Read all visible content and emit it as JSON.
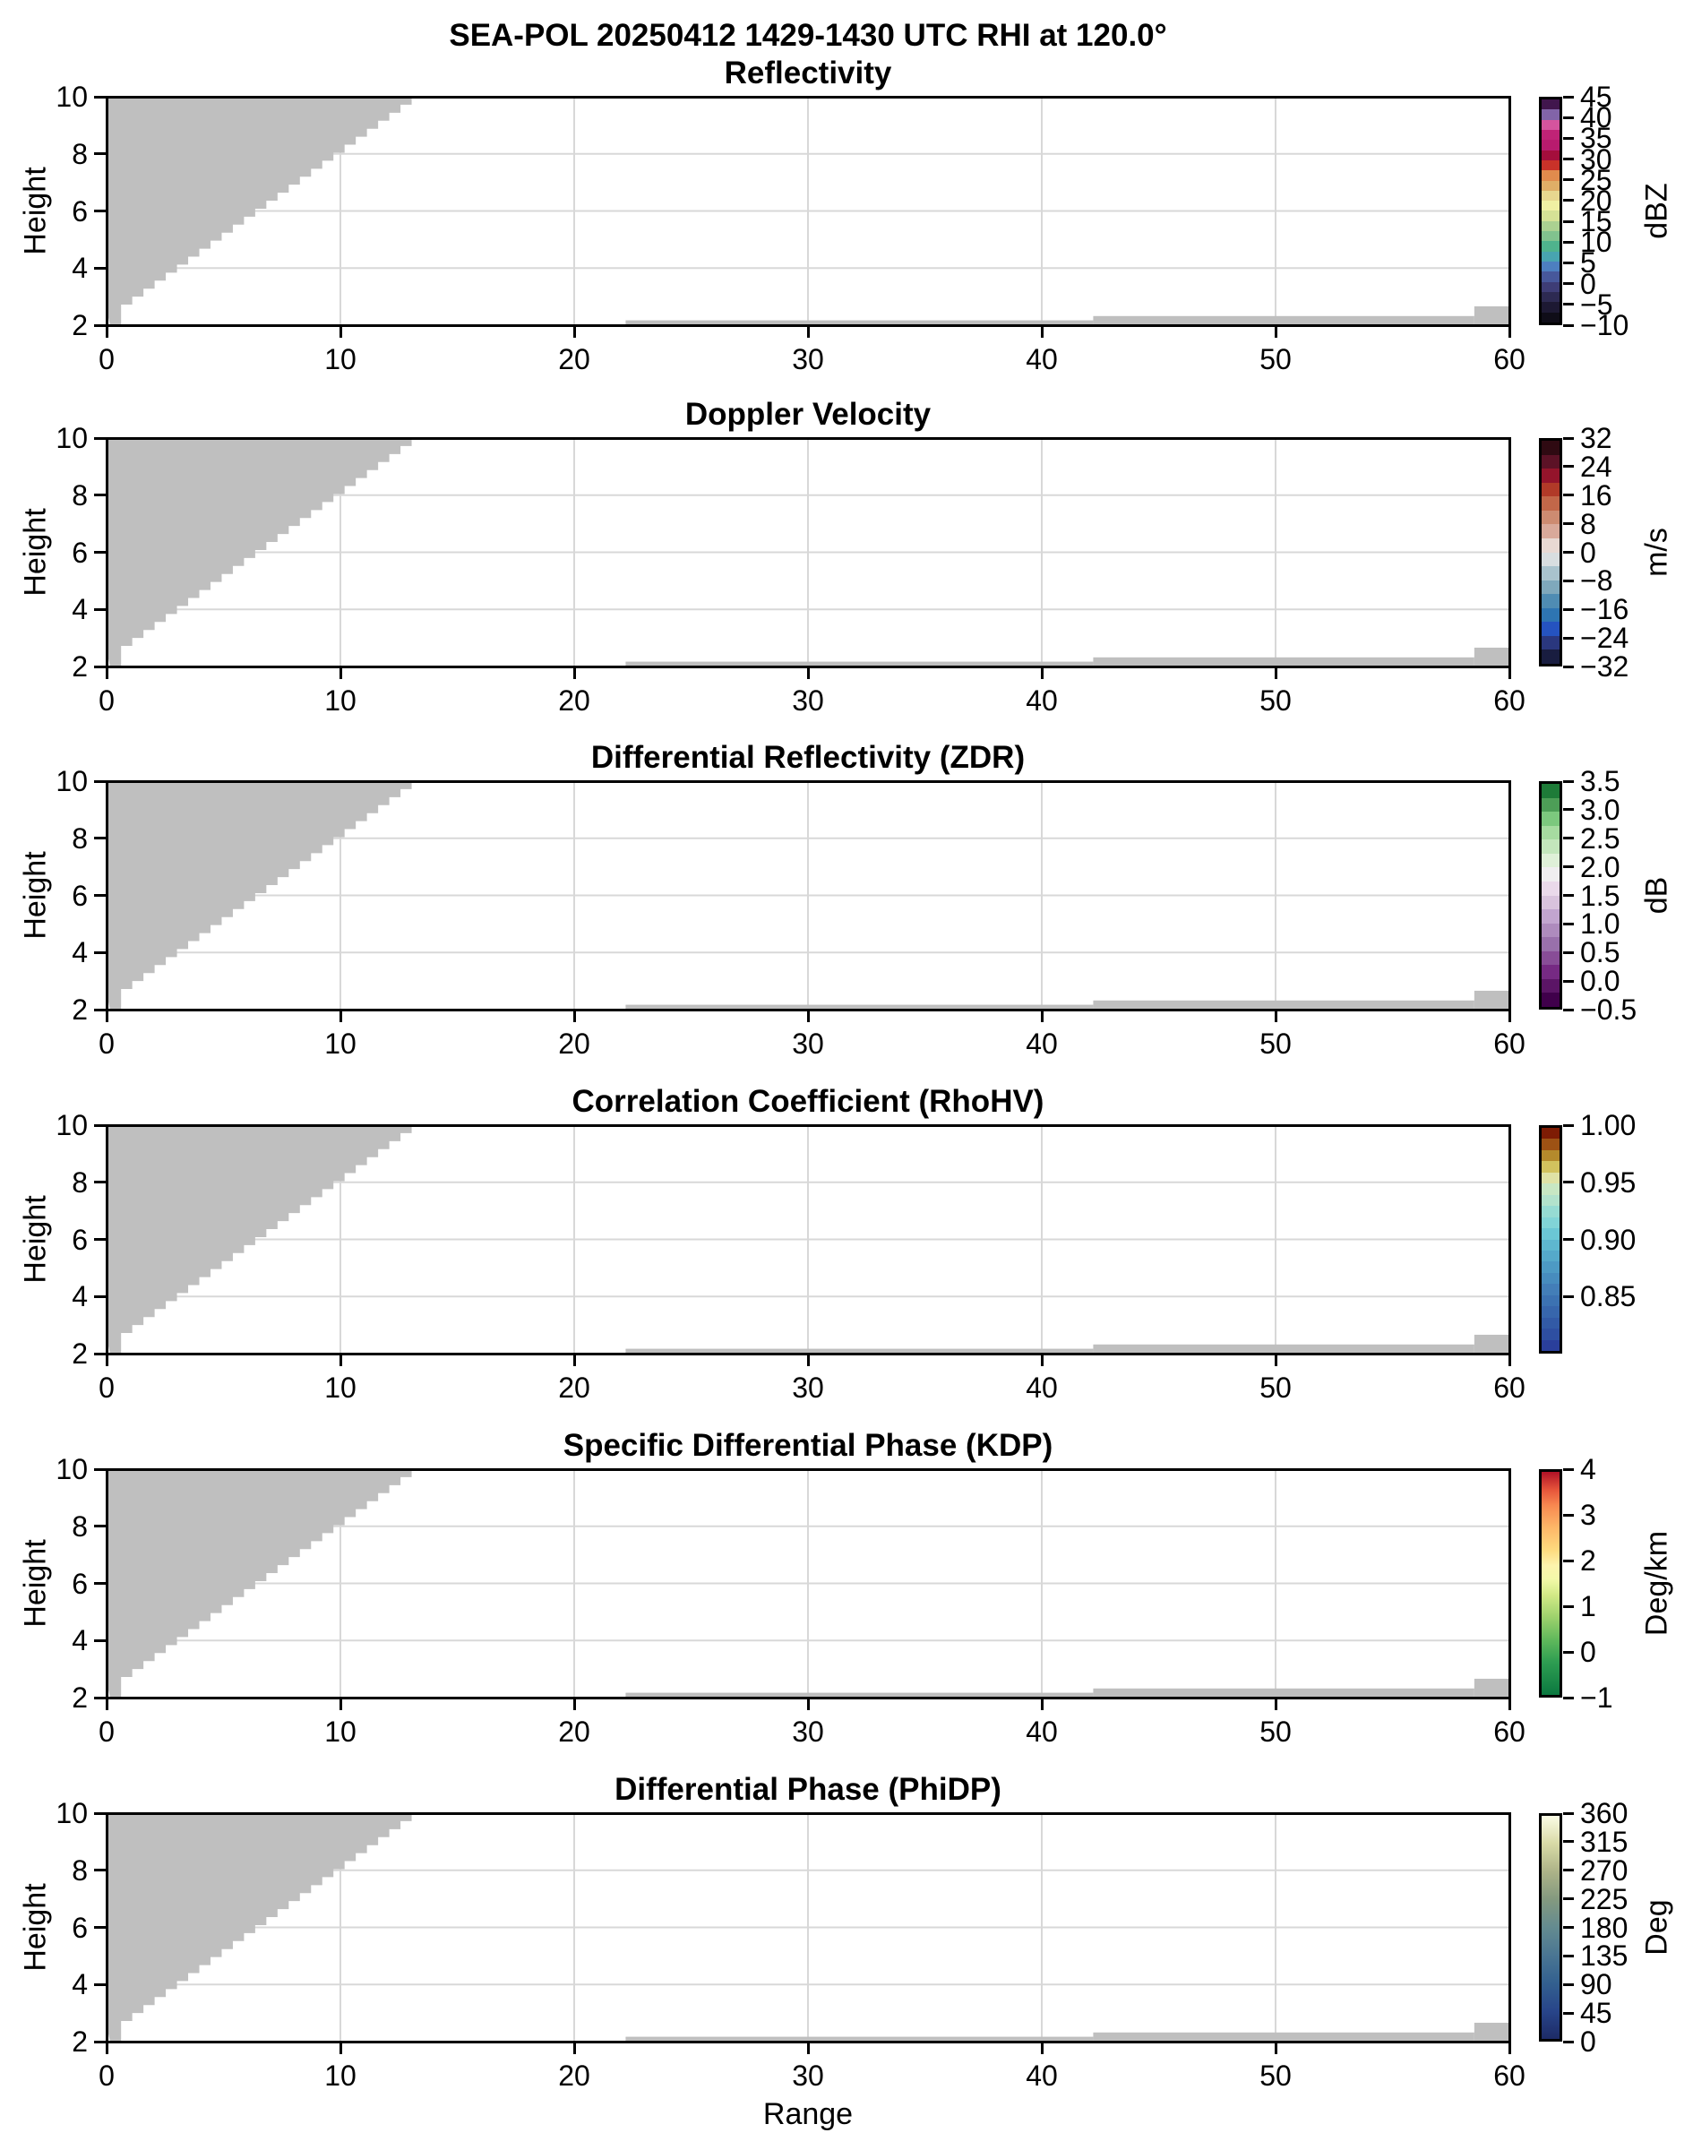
{
  "figure": {
    "suptitle": "SEA-POL 20250412 1429-1430 UTC RHI at 120.0°",
    "background": "#ffffff"
  },
  "chart_data": {
    "type": "heatmap",
    "subtype": "radar-rhi-multipanel",
    "description": "Six stacked RHI panels sharing identical axes and identical masked-data footprint (gray = data region, all values masked/NaN).",
    "x_axis": {
      "label": "Range",
      "lim": [
        0,
        60
      ],
      "ticks": [
        0,
        10,
        20,
        30,
        40,
        50,
        60
      ],
      "tick_labels": [
        "0",
        "10",
        "20",
        "30",
        "40",
        "50",
        "60"
      ],
      "gridlines": [
        10,
        20,
        30,
        40,
        50
      ]
    },
    "y_axis": {
      "label": "Height",
      "lim": [
        2,
        10
      ],
      "ticks": [
        2,
        4,
        6,
        8,
        10
      ],
      "tick_labels": [
        "2",
        "4",
        "6",
        "8",
        "10"
      ],
      "gridlines": [
        4,
        6,
        8
      ]
    },
    "style": {
      "mask_color": "#bfbfbf",
      "grid_color": "#d8d8d8",
      "spine_color": "#000000"
    },
    "masked_data_footprint": {
      "wedge": {
        "comment": "stepped triangular region in upper-left: filled from x=0 to stair boundary rising from (0.62,2) to (13.05,10)",
        "x_bottom_left": 0.15,
        "x_bottom_right": 0.62,
        "first_rise_top_y": 2.72,
        "steps": 26,
        "step_dx": 0.478,
        "step_dy": 0.28,
        "left_edge_bottom_y": 2.55
      },
      "strips": [
        {
          "x0": 22.2,
          "x1": 42.2,
          "y_top": 2.17
        },
        {
          "x0": 42.2,
          "x1": 58.5,
          "y_top": 2.32
        },
        {
          "x0": 58.5,
          "x1": 60.0,
          "y_top": 2.66
        }
      ]
    },
    "panels": [
      {
        "slug": "reflectivity",
        "title": "Reflectivity",
        "colorbar": {
          "mode": "bands",
          "min": -10,
          "max": 45,
          "unit": "dBZ",
          "tick_values": [
            45,
            40,
            35,
            30,
            25,
            20,
            15,
            10,
            5,
            0,
            -5,
            -10
          ],
          "tick_labels": [
            "45",
            "40",
            "35",
            "30",
            "25",
            "20",
            "15",
            "10",
            "5",
            "0",
            "−5",
            "−10"
          ],
          "colors_bottom_to_top": [
            "#0f0d18",
            "#1d1933",
            "#2d2a52",
            "#3e3d76",
            "#47589b",
            "#4d7fc0",
            "#48a4b0",
            "#4fb38d",
            "#81c28e",
            "#abd191",
            "#d5e296",
            "#f0f0a3",
            "#e8d78f",
            "#dfae67",
            "#e08b4d",
            "#c93229",
            "#a40e3c",
            "#b81b6e",
            "#c02376",
            "#d5549e",
            "#8264a8",
            "#41164d"
          ]
        }
      },
      {
        "slug": "doppler-velocity",
        "title": "Doppler Velocity",
        "colorbar": {
          "mode": "bands",
          "min": -32,
          "max": 32,
          "unit": "m/s",
          "tick_values": [
            32,
            24,
            16,
            8,
            0,
            -8,
            -16,
            -24,
            -32
          ],
          "tick_labels": [
            "32",
            "24",
            "16",
            "8",
            "0",
            "−8",
            "−16",
            "−24",
            "−32"
          ],
          "colors_bottom_to_top": [
            "#191d40",
            "#2a377e",
            "#2553c0",
            "#2e75b2",
            "#4f8cb3",
            "#7fa8bc",
            "#a9c3cd",
            "#d8dee0",
            "#e8d9d3",
            "#d9a99a",
            "#cd8b71",
            "#c26749",
            "#b13a28",
            "#94142b",
            "#5c1226",
            "#2f0a12"
          ]
        }
      },
      {
        "slug": "differential-reflectivity-zdr",
        "title": "Differential Reflectivity (ZDR)",
        "colorbar": {
          "mode": "bands",
          "min": -0.5,
          "max": 3.5,
          "unit": "dB",
          "tick_values": [
            3.5,
            3.0,
            2.5,
            2.0,
            1.5,
            1.0,
            0.5,
            0.0,
            -0.5
          ],
          "tick_labels": [
            "3.5",
            "3.0",
            "2.5",
            "2.0",
            "1.5",
            "1.0",
            "0.5",
            "0.0",
            "−0.5"
          ],
          "colors_bottom_to_top": [
            "#40004b",
            "#5b1566",
            "#762a83",
            "#884d97",
            "#9970ab",
            "#ae8bbd",
            "#c2a5cf",
            "#d9c3dd",
            "#ead9ea",
            "#f0eef0",
            "#dff0d8",
            "#c3e6bc",
            "#a6dba0",
            "#7cc87e",
            "#4d9e57",
            "#1e7b38"
          ]
        }
      },
      {
        "slug": "correlation-coefficient-rhohv",
        "title": "Correlation Coefficient (RhoHV)",
        "colorbar": {
          "mode": "bands",
          "min": 0.8,
          "max": 1.0,
          "unit": "",
          "tick_values": [
            1.0,
            0.95,
            0.9,
            0.85
          ],
          "tick_labels": [
            "1.00",
            "0.95",
            "0.90",
            "0.85"
          ],
          "colors_bottom_to_top": [
            "#2a3f9b",
            "#2e4fa1",
            "#325aa6",
            "#3766ac",
            "#3c72b2",
            "#437eb8",
            "#478cbe",
            "#4d9ac4",
            "#55a9ca",
            "#5eb7cf",
            "#6bc7d5",
            "#81d4d7",
            "#96dbd3",
            "#b2e2cc",
            "#c8e7c3",
            "#dfe2a5",
            "#d2c25e",
            "#b48a2c",
            "#9d5214",
            "#7e1c04"
          ]
        }
      },
      {
        "slug": "specific-differential-phase-kdp",
        "title": "Specific Differential Phase (KDP)",
        "colorbar": {
          "mode": "gradient",
          "min": -1,
          "max": 4,
          "unit": "Deg/km",
          "tick_values": [
            4,
            3,
            2,
            1,
            0,
            -1
          ],
          "tick_labels": [
            "4",
            "3",
            "2",
            "1",
            "0",
            "−1"
          ],
          "stops_bottom_to_top": [
            [
              0,
              "#0b7840"
            ],
            [
              15,
              "#2f9e52"
            ],
            [
              25,
              "#62b95c"
            ],
            [
              35,
              "#9ed26d"
            ],
            [
              45,
              "#d3ea87"
            ],
            [
              52,
              "#f3f9a9"
            ],
            [
              58,
              "#fdf3ad"
            ],
            [
              65,
              "#fdda7e"
            ],
            [
              75,
              "#fdb768"
            ],
            [
              85,
              "#f88850"
            ],
            [
              92,
              "#e6543a"
            ],
            [
              100,
              "#b01226"
            ]
          ]
        }
      },
      {
        "slug": "differential-phase-phidp",
        "title": "Differential Phase (PhiDP)",
        "colorbar": {
          "mode": "gradient",
          "min": 0,
          "max": 360,
          "unit": "Deg",
          "tick_values": [
            360,
            315,
            270,
            225,
            180,
            135,
            90,
            45,
            0
          ],
          "tick_labels": [
            "360",
            "315",
            "270",
            "225",
            "180",
            "135",
            "90",
            "45",
            "0"
          ],
          "stops_bottom_to_top": [
            [
              0,
              "#1d2b66"
            ],
            [
              12.5,
              "#28458a"
            ],
            [
              25,
              "#33608f"
            ],
            [
              37.5,
              "#4a7693"
            ],
            [
              50,
              "#648b90"
            ],
            [
              62.5,
              "#83997f"
            ],
            [
              75,
              "#adb388"
            ],
            [
              87.5,
              "#d8daa6"
            ],
            [
              100,
              "#fbfce5"
            ]
          ]
        }
      }
    ]
  }
}
